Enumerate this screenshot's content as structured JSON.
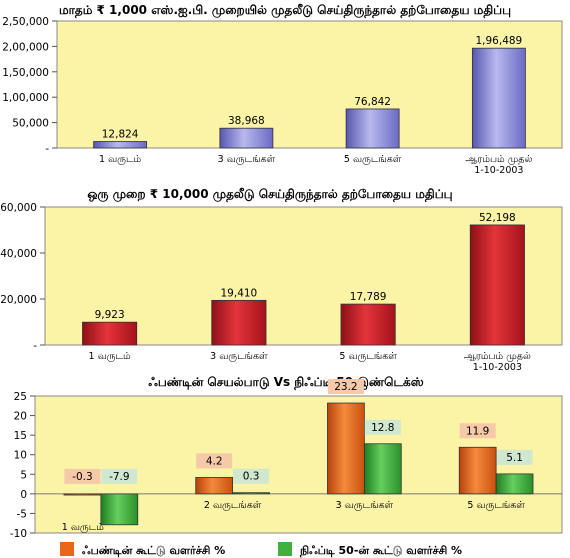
{
  "chart_data": [
    {
      "type": "bar",
      "title": "மாதம் ₹ 1,000 எஸ்.ஐ.பி. முறையில் முதலீடு செய்திருந்தால் தற்போதைய மதிப்பு",
      "categories": [
        "1 வருடம்",
        "3 வருடங்கள்",
        "5 வருடங்கள்",
        "ஆரம்பம் முதல் 1-10-2003"
      ],
      "values": [
        12824,
        38968,
        76842,
        196489
      ],
      "value_labels": [
        "12,824",
        "38,968",
        "76,842",
        "1,96,489"
      ],
      "y_ticks": [
        "2,50,000",
        "2,00,000",
        "1,50,000",
        "1,00,000",
        "50,000",
        "-"
      ],
      "ylim": [
        0,
        250000
      ],
      "bar_color": "#8b8bd8",
      "background": "#fbf3a6"
    },
    {
      "type": "bar",
      "title": "ஒரு முறை ₹ 10,000 முதலீடு செய்திருந்தால் தற்போதைய மதிப்பு",
      "categories": [
        "1 வருடம்",
        "3 வருடங்கள்",
        "5 வருடங்கள்",
        "ஆரம்பம் முதல் 1-10-2003"
      ],
      "values": [
        9923,
        19410,
        17789,
        52198
      ],
      "value_labels": [
        "9,923",
        "19,410",
        "17,789",
        "52,198"
      ],
      "y_ticks": [
        "60,000",
        "40,000",
        "20,000",
        "-"
      ],
      "ylim": [
        0,
        60000
      ],
      "bar_color": "#d0202a",
      "background": "#fbf3a6"
    },
    {
      "type": "bar",
      "title": "ஃபண்டின் செயல்பாடு Vs நிஃப்டி 50 இண்டெக்ஸ்",
      "categories": [
        "1 வருடம்",
        "2 வருடங்கள்",
        "3 வருடங்கள்",
        "5 வருடங்கள்"
      ],
      "y_ticks": [
        "25",
        "20",
        "15",
        "10",
        "5",
        "0",
        "-5",
        "-10"
      ],
      "ylim": [
        -10,
        25
      ],
      "series": [
        {
          "name": "ஃபண்டின் கூட்டு வளர்ச்சி %",
          "values": [
            -0.3,
            4.2,
            23.2,
            11.9
          ],
          "labels": [
            "-0.3",
            "4.2",
            "23.2",
            "11.9"
          ],
          "color": "#e8651a",
          "label_bg": "#f6c9a8"
        },
        {
          "name": "நிஃப்டி 50-ன் கூட்டு வளர்ச்சி %",
          "values": [
            -7.9,
            0.3,
            12.8,
            5.1
          ],
          "labels": [
            "-7.9",
            "0.3",
            "12.8",
            "5.1"
          ],
          "color": "#3eb23c",
          "label_bg": "#cfe8cf"
        }
      ],
      "background": "#fbf3a6"
    }
  ]
}
